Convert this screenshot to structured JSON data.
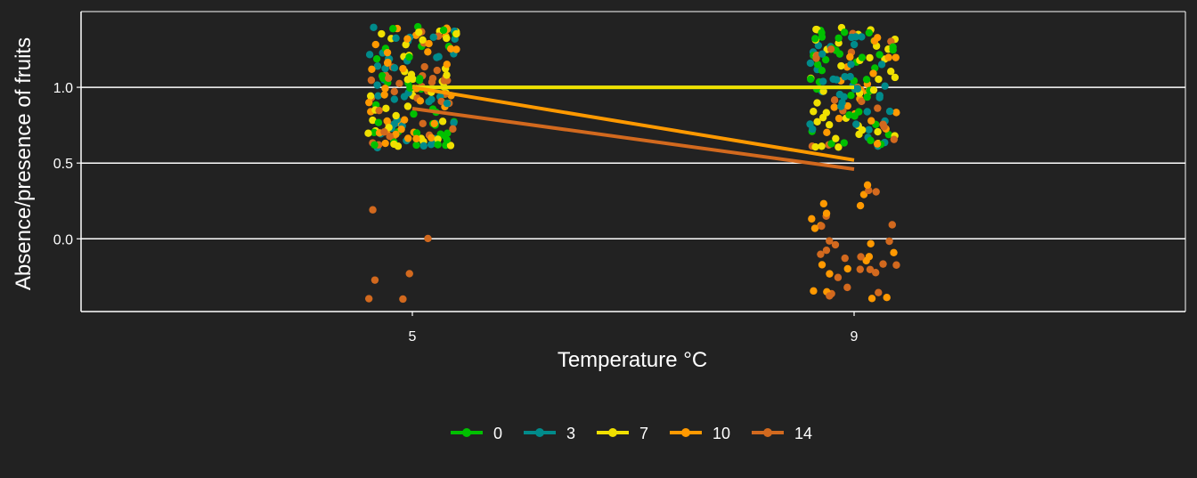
{
  "chart_data": {
    "type": "scatter",
    "title": "",
    "xlabel": "Temperature °C",
    "ylabel": "Absence/presence of fruits",
    "xlim": [
      2,
      12
    ],
    "ylim": [
      -0.48,
      1.5
    ],
    "x_ticks": [
      5,
      9
    ],
    "x_tick_labels": [
      "5",
      "9"
    ],
    "y_ticks": [
      0,
      0.5,
      1
    ],
    "y_tick_labels": [
      "0.0",
      "0.5",
      "1.0"
    ],
    "grid": "horizontal major lines",
    "legend_position": "bottom",
    "jitter_note": "points are jittered around binary outcomes (0 = absent, 1 = present) at each temperature",
    "series": [
      {
        "name": "0",
        "color": "#00c000",
        "present": {
          "t5": 40,
          "t9": 40
        },
        "absent": {
          "t5": 0,
          "t9": 0
        },
        "fit": {
          "x": [
            5,
            9
          ],
          "y": [
            1.0,
            1.0
          ]
        }
      },
      {
        "name": "3",
        "color": "#008b8b",
        "present": {
          "t5": 40,
          "t9": 40
        },
        "absent": {
          "t5": 0,
          "t9": 0
        },
        "fit": {
          "x": [
            5,
            9
          ],
          "y": [
            1.0,
            1.0
          ]
        }
      },
      {
        "name": "7",
        "color": "#f0e000",
        "present": {
          "t5": 40,
          "t9": 40
        },
        "absent": {
          "t5": 0,
          "t9": 0
        },
        "fit": {
          "x": [
            5,
            9
          ],
          "y": [
            1.0,
            1.0
          ]
        }
      },
      {
        "name": "10",
        "color": "#ff9900",
        "present": {
          "t5": 40,
          "t9": 21
        },
        "absent": {
          "t5": 0,
          "t9": 19
        },
        "fit": {
          "x": [
            5,
            9
          ],
          "y": [
            1.0,
            0.52
          ]
        }
      },
      {
        "name": "14",
        "color": "#d2691e",
        "present": {
          "t5": 34,
          "t9": 18
        },
        "absent": {
          "t5": 6,
          "t9": 22
        },
        "fit": {
          "x": [
            5,
            9
          ],
          "y": [
            0.86,
            0.46
          ]
        }
      }
    ]
  }
}
